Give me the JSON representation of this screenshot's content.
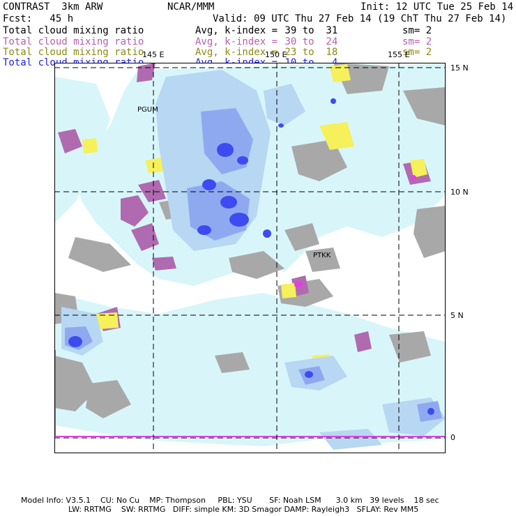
{
  "header": {
    "model": "CONTRAST  3km ARW",
    "org": "NCAR/MMM",
    "init": "Init: 12 UTC Tue 25 Feb 14",
    "fcst": "Fcst:   45 h",
    "valid": "Valid: 09 UTC Thu 27 Feb 14 (19 ChT Thu 27 Feb 14)"
  },
  "fields": [
    {
      "name": "Total cloud mixing ratio",
      "avg": "Avg, k-index =",
      "range": " 39 to  31",
      "sm": "sm= 2",
      "color": "#000000"
    },
    {
      "name": "Total cloud mixing ratio",
      "avg": "Avg, k-index =",
      "range": " 30 to  24",
      "sm": "sm= 2",
      "color": "#b35fb0"
    },
    {
      "name": "Total cloud mixing ratio",
      "avg": "Avg, k-index =",
      "range": " 23 to  18",
      "sm": "sm= 2",
      "color": "#8a8a10"
    },
    {
      "name": "Total cloud mixing ratio",
      "avg": "Avg, k-index =",
      "range": " 10 to   4",
      "sm": "",
      "color": "#2222dd"
    }
  ],
  "map": {
    "lon_labels": [
      "145 E",
      "150 E",
      "155 E"
    ],
    "lat_labels": [
      "15 N",
      "10 N",
      "5 N",
      "0"
    ],
    "stations": [
      "PGUM",
      "PTKK"
    ],
    "colors": {
      "gray": "#a8a8a8",
      "purple": "#b06ab0",
      "yellow": "#f6f05a",
      "lightcyan": "#d8f6fa",
      "lightblue": "#b7d7f2",
      "midblue": "#8fa9f0",
      "blue": "#3d4bf0",
      "magenta": "#e040e0"
    }
  },
  "footer": {
    "line1": "Model Info: V3.5.1    CU: No Cu    MP: Thompson     PBL: YSU       SF: Noah LSM      3.0 km   39 levels    18 sec",
    "line2": "LW: RRTMG    SW: RRTMG   DIFF: simple KM: 3D Smagor DAMP: Rayleigh3   SFLAY: Rev MM5"
  }
}
